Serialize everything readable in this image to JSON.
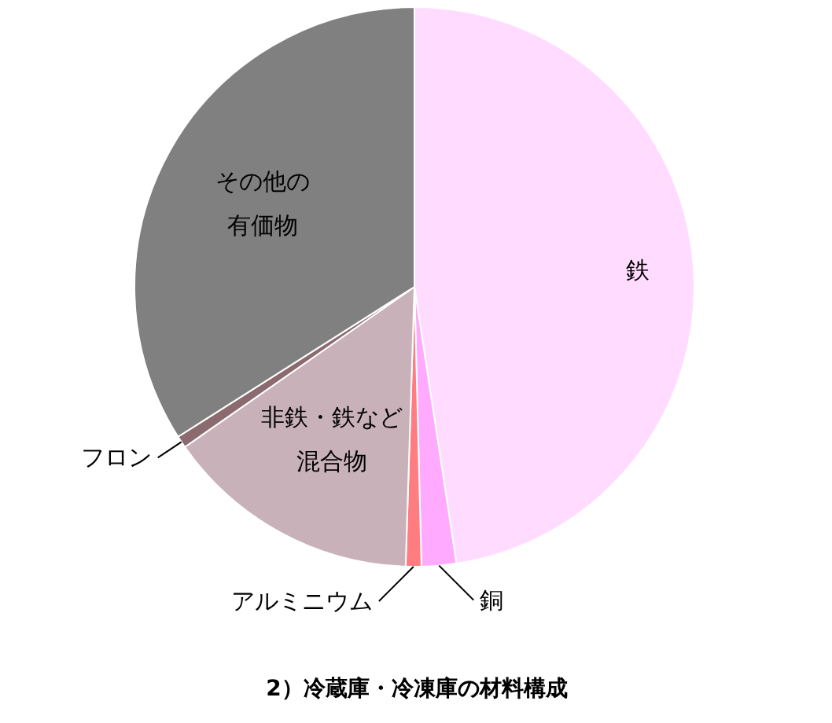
{
  "chart_data": {
    "type": "pie",
    "title": "2）冷蔵庫・冷凍庫の材料構成",
    "categories": [
      "鉄",
      "銅",
      "アルミニウム",
      "非鉄・鉄など混合物",
      "フロン",
      "その他の有価物"
    ],
    "values": [
      47.6,
      2.0,
      0.9,
      14.8,
      0.7,
      34.0
    ],
    "colors": [
      "#ffdcff",
      "#ffaaff",
      "#ff7c80",
      "#c9b1b9",
      "#8b6a70",
      "#808080"
    ]
  }
}
